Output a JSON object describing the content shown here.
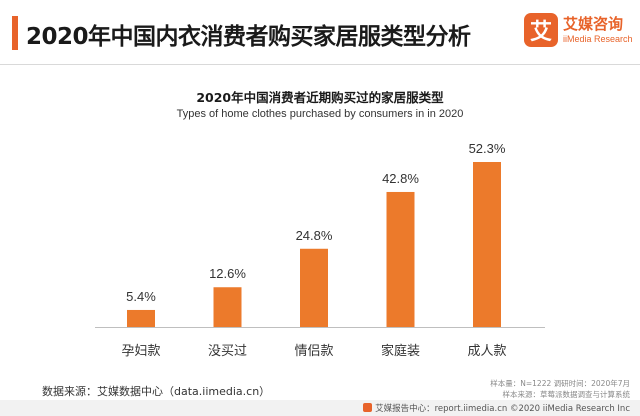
{
  "header": {
    "title": "2020年中国内衣消费者购买家居服类型分析",
    "logo_mark": "艾",
    "logo_cn": "艾媒咨询",
    "logo_en": "iiMedia Research"
  },
  "chart_data": {
    "type": "bar",
    "title": "2020年中国消费者近期购买过的家居服类型",
    "subtitle": "Types of home clothes purchased by consumers in in 2020",
    "categories": [
      "孕妇款",
      "没买过",
      "情侣款",
      "家庭装",
      "成人款"
    ],
    "values": [
      5.4,
      12.6,
      24.8,
      42.8,
      52.3
    ],
    "value_labels": [
      "5.4%",
      "12.6%",
      "24.8%",
      "42.8%",
      "52.3%"
    ],
    "unit": "%",
    "ylim": [
      0,
      52.3
    ],
    "grid": false,
    "legend": "none",
    "bar_color": "#ec7a2b"
  },
  "source": "数据来源：艾媒数据中心（data.iimedia.cn）",
  "meta": {
    "line1": "样本量：N=1222    调研时间：2020年7月",
    "line2": "样本来源：草莓派数据调查与计算系统"
  },
  "footer": {
    "text": "艾媒报告中心：report.iimedia.cn  ©2020  iiMedia Research  Inc"
  },
  "colors": {
    "accent": "#e8632a",
    "bar": "#ec7a2b"
  }
}
